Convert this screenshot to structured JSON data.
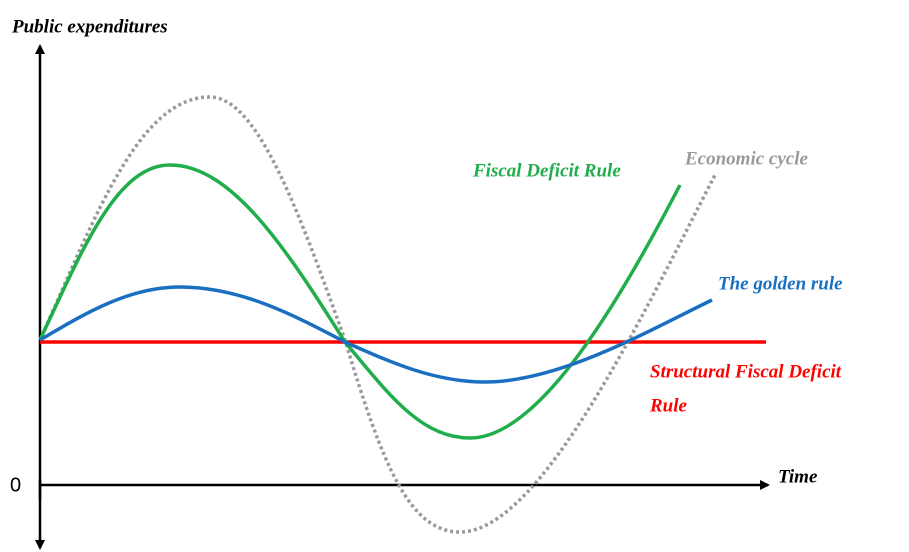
{
  "axes": {
    "y_label": "Public expenditures",
    "x_label": "Time",
    "origin": "0"
  },
  "labels": {
    "fiscal_deficit_rule": "Fiscal Deficit Rule",
    "economic_cycle": "Economic cycle",
    "golden_rule": "The golden rule",
    "structural_rule": [
      "Structural Fiscal Deficit",
      "Rule"
    ]
  }
}
